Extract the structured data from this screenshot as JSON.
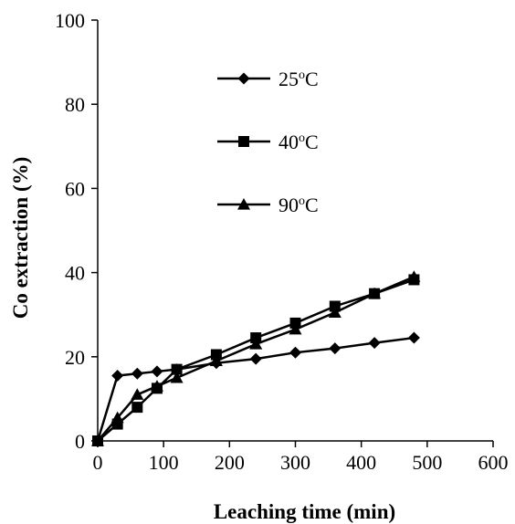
{
  "chart_data": {
    "type": "line",
    "title": "",
    "xlabel": "Leaching time (min)",
    "ylabel": "Co  extraction (%)",
    "xlim": [
      0,
      600
    ],
    "ylim": [
      0,
      100
    ],
    "xticks": [
      "0",
      "100",
      "200",
      "300",
      "400",
      "500",
      "600"
    ],
    "yticks": [
      "0",
      "20",
      "40",
      "60",
      "80",
      "100"
    ],
    "grid": false,
    "legend_position": "upper-left-inside",
    "series": [
      {
        "name": "25oC",
        "name_parts": [
          "25",
          "o",
          "C"
        ],
        "marker": "diamond",
        "color": "#000000",
        "x": [
          0,
          30,
          60,
          90,
          120,
          180,
          240,
          300,
          360,
          420,
          480
        ],
        "y": [
          0,
          15.5,
          16,
          16.5,
          17,
          18.5,
          19.5,
          21,
          22,
          23.3,
          24.5
        ]
      },
      {
        "name": "40oC",
        "name_parts": [
          "40",
          "o",
          "C"
        ],
        "marker": "square",
        "color": "#000000",
        "x": [
          0,
          30,
          60,
          90,
          120,
          180,
          240,
          300,
          360,
          420,
          480
        ],
        "y": [
          0,
          4,
          8,
          12.5,
          17,
          20.5,
          24.5,
          28,
          32,
          35,
          38.3
        ]
      },
      {
        "name": "90oC",
        "name_parts": [
          "90",
          "o",
          "C"
        ],
        "marker": "triangle",
        "color": "#000000",
        "x": [
          0,
          30,
          60,
          90,
          120,
          180,
          240,
          300,
          360,
          420,
          480
        ],
        "y": [
          0,
          5.5,
          11,
          13,
          15,
          19,
          23,
          26.5,
          30.5,
          35,
          39
        ]
      }
    ]
  }
}
